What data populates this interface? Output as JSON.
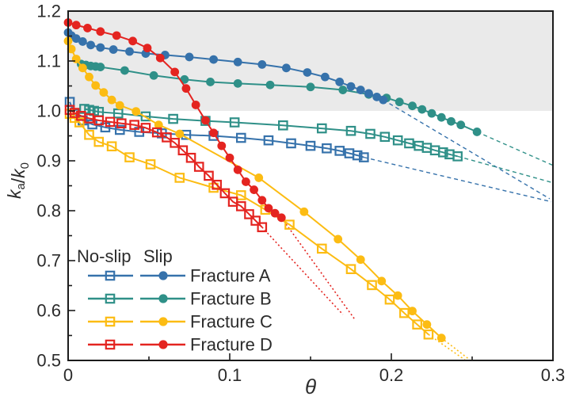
{
  "figure": {
    "background": "#ffffff",
    "frame_color": "#1c1c1c",
    "text_color": "#2b2b2b"
  },
  "chart_data": {
    "type": "line",
    "title": "",
    "xlabel": "θ",
    "ylabel": "ka/k0",
    "ylabel_parts": [
      {
        "t": "k",
        "style": "italic"
      },
      {
        "t": "a",
        "style": "sub"
      },
      {
        "t": "/",
        "style": "normal"
      },
      {
        "t": "k",
        "style": "italic"
      },
      {
        "t": "0",
        "style": "sub"
      }
    ],
    "x_range": [
      0,
      0.3
    ],
    "y_range": [
      0.5,
      1.2
    ],
    "x_ticks": {
      "values": [
        0,
        0.1,
        0.2,
        0.3
      ],
      "labels": [
        "0",
        "0.1",
        "0.2",
        "0.3"
      ],
      "minor": [
        0.05,
        0.15,
        0.25
      ]
    },
    "y_ticks": {
      "values": [
        0.5,
        0.6,
        0.7,
        0.8,
        0.9,
        1.0,
        1.1,
        1.2
      ],
      "labels": [
        "0.5",
        "0.6",
        "0.7",
        "0.8",
        "0.9",
        "1.0",
        "1.1",
        "1.2"
      ],
      "minor": [
        0.55,
        0.65,
        0.75,
        0.85,
        0.95,
        1.05,
        1.15
      ]
    },
    "grid": false,
    "shaded_band": {
      "y_from": 1.0,
      "y_to": 1.2,
      "color": "#eaeaea"
    },
    "legend_position": "inside-bottom-left",
    "series": [
      {
        "name": "Fracture A (No-slip)",
        "group": "no-slip",
        "marker": "open-square",
        "color": "#3672ab",
        "dash": "5 4",
        "dash_width": 1.4,
        "points": [
          [
            0.001,
            1.018
          ],
          [
            0.004,
            0.994
          ],
          [
            0.009,
            0.981
          ],
          [
            0.015,
            0.973
          ],
          [
            0.023,
            0.967
          ],
          [
            0.032,
            0.962
          ],
          [
            0.044,
            0.958
          ],
          [
            0.058,
            0.955
          ],
          [
            0.073,
            0.952
          ],
          [
            0.09,
            0.95
          ],
          [
            0.107,
            0.946
          ],
          [
            0.124,
            0.941
          ],
          [
            0.138,
            0.935
          ],
          [
            0.15,
            0.93
          ],
          [
            0.16,
            0.925
          ],
          [
            0.168,
            0.92
          ],
          [
            0.174,
            0.915
          ],
          [
            0.179,
            0.911
          ],
          [
            0.183,
            0.907
          ]
        ],
        "extension": [
          [
            0.183,
            0.907
          ],
          [
            0.299,
            0.818
          ]
        ]
      },
      {
        "name": "Fracture A (Slip)",
        "group": "slip",
        "marker": "filled-circle",
        "color": "#3672ab",
        "dash": "5 4",
        "dash_width": 1.4,
        "points": [
          [
            0,
            1.157
          ],
          [
            0.002,
            1.151
          ],
          [
            0.005,
            1.145
          ],
          [
            0.009,
            1.139
          ],
          [
            0.014,
            1.132
          ],
          [
            0.02,
            1.127
          ],
          [
            0.028,
            1.123
          ],
          [
            0.038,
            1.119
          ],
          [
            0.048,
            1.115
          ],
          [
            0.06,
            1.112
          ],
          [
            0.075,
            1.108
          ],
          [
            0.09,
            1.103
          ],
          [
            0.105,
            1.098
          ],
          [
            0.12,
            1.093
          ],
          [
            0.135,
            1.086
          ],
          [
            0.148,
            1.077
          ],
          [
            0.159,
            1.068
          ],
          [
            0.168,
            1.058
          ],
          [
            0.175,
            1.049
          ],
          [
            0.181,
            1.042
          ],
          [
            0.186,
            1.035
          ],
          [
            0.191,
            1.028
          ],
          [
            0.195,
            1.022
          ]
        ],
        "extension": [
          [
            0.195,
            1.022
          ],
          [
            0.298,
            0.824
          ]
        ]
      },
      {
        "name": "Fracture B (No-slip)",
        "group": "no-slip",
        "marker": "open-square",
        "color": "#2f9088",
        "dash": "5 4",
        "dash_width": 1.4,
        "points": [
          [
            0.01,
            1.004
          ],
          [
            0.013,
            1.002
          ],
          [
            0.016,
            1.0
          ],
          [
            0.019,
            0.998
          ],
          [
            0.031,
            0.995
          ],
          [
            0.048,
            0.989
          ],
          [
            0.065,
            0.984
          ],
          [
            0.085,
            0.98
          ],
          [
            0.103,
            0.977
          ],
          [
            0.133,
            0.971
          ],
          [
            0.157,
            0.965
          ],
          [
            0.175,
            0.96
          ],
          [
            0.187,
            0.954
          ],
          [
            0.196,
            0.948
          ],
          [
            0.204,
            0.941
          ],
          [
            0.211,
            0.935
          ],
          [
            0.217,
            0.93
          ],
          [
            0.222,
            0.926
          ],
          [
            0.227,
            0.921
          ],
          [
            0.232,
            0.917
          ],
          [
            0.236,
            0.913
          ],
          [
            0.241,
            0.909
          ]
        ],
        "extension": [
          [
            0.241,
            0.909
          ],
          [
            0.3,
            0.856
          ]
        ]
      },
      {
        "name": "Fracture B (Slip)",
        "group": "slip",
        "marker": "filled-circle",
        "color": "#2f9088",
        "dash": "5 4",
        "dash_width": 1.4,
        "points": [
          [
            0.008,
            1.094
          ],
          [
            0.011,
            1.092
          ],
          [
            0.014,
            1.09
          ],
          [
            0.017,
            1.089
          ],
          [
            0.02,
            1.088
          ],
          [
            0.035,
            1.081
          ],
          [
            0.053,
            1.071
          ],
          [
            0.072,
            1.063
          ],
          [
            0.088,
            1.058
          ],
          [
            0.105,
            1.055
          ],
          [
            0.125,
            1.052
          ],
          [
            0.15,
            1.048
          ],
          [
            0.17,
            1.042
          ],
          [
            0.186,
            1.033
          ],
          [
            0.197,
            1.026
          ],
          [
            0.205,
            1.018
          ],
          [
            0.213,
            1.01
          ],
          [
            0.219,
            1.003
          ],
          [
            0.225,
            0.995
          ],
          [
            0.231,
            0.987
          ],
          [
            0.237,
            0.979
          ],
          [
            0.243,
            0.972
          ],
          [
            0.253,
            0.958
          ]
        ],
        "extension": [
          [
            0.253,
            0.958
          ],
          [
            0.3,
            0.891
          ]
        ]
      },
      {
        "name": "Fracture C (No-slip)",
        "group": "no-slip",
        "marker": "open-square",
        "color": "#fcbc13",
        "dash": "2 3",
        "dash_width": 1.6,
        "points": [
          [
            0.001,
            0.994
          ],
          [
            0.004,
            0.986
          ],
          [
            0.007,
            0.977
          ],
          [
            0.013,
            0.952
          ],
          [
            0.019,
            0.938
          ],
          [
            0.027,
            0.929
          ],
          [
            0.038,
            0.907
          ],
          [
            0.051,
            0.893
          ],
          [
            0.069,
            0.866
          ],
          [
            0.09,
            0.846
          ],
          [
            0.107,
            0.831
          ],
          [
            0.122,
            0.802
          ],
          [
            0.137,
            0.772
          ],
          [
            0.157,
            0.724
          ],
          [
            0.175,
            0.683
          ],
          [
            0.188,
            0.651
          ],
          [
            0.199,
            0.622
          ],
          [
            0.208,
            0.595
          ],
          [
            0.216,
            0.572
          ],
          [
            0.223,
            0.552
          ]
        ],
        "extension": [
          [
            0.223,
            0.552
          ],
          [
            0.246,
            0.5
          ]
        ]
      },
      {
        "name": "Fracture C (Slip)",
        "group": "slip",
        "marker": "filled-circle",
        "color": "#fcbc13",
        "dash": "2 3",
        "dash_width": 1.6,
        "points": [
          [
            0,
            1.14
          ],
          [
            0.002,
            1.124
          ],
          [
            0.005,
            1.104
          ],
          [
            0.009,
            1.086
          ],
          [
            0.013,
            1.068
          ],
          [
            0.017,
            1.051
          ],
          [
            0.022,
            1.037
          ],
          [
            0.027,
            1.022
          ],
          [
            0.032,
            1.011
          ],
          [
            0.042,
            0.999
          ],
          [
            0.056,
            0.972
          ],
          [
            0.069,
            0.954
          ],
          [
            0.118,
            0.866
          ],
          [
            0.146,
            0.798
          ],
          [
            0.167,
            0.743
          ],
          [
            0.181,
            0.702
          ],
          [
            0.194,
            0.659
          ],
          [
            0.204,
            0.63
          ],
          [
            0.213,
            0.599
          ],
          [
            0.222,
            0.572
          ],
          [
            0.231,
            0.545
          ]
        ],
        "extension": [
          [
            0.231,
            0.545
          ],
          [
            0.249,
            0.5
          ]
        ]
      },
      {
        "name": "Fracture D (No-slip)",
        "group": "no-slip",
        "marker": "open-square",
        "color": "#e42420",
        "dash": "2 3",
        "dash_width": 1.6,
        "points": [
          [
            0.001,
            1.002
          ],
          [
            0.004,
            0.996
          ],
          [
            0.008,
            0.99
          ],
          [
            0.013,
            0.985
          ],
          [
            0.019,
            0.981
          ],
          [
            0.026,
            0.978
          ],
          [
            0.033,
            0.975
          ],
          [
            0.041,
            0.972
          ],
          [
            0.048,
            0.966
          ],
          [
            0.055,
            0.957
          ],
          [
            0.061,
            0.947
          ],
          [
            0.066,
            0.936
          ],
          [
            0.071,
            0.921
          ],
          [
            0.076,
            0.906
          ],
          [
            0.081,
            0.888
          ],
          [
            0.087,
            0.87
          ],
          [
            0.092,
            0.852
          ],
          [
            0.097,
            0.835
          ],
          [
            0.102,
            0.818
          ],
          [
            0.107,
            0.809
          ],
          [
            0.112,
            0.793
          ],
          [
            0.116,
            0.78
          ],
          [
            0.12,
            0.767
          ]
        ],
        "extension": [
          [
            0.12,
            0.767
          ],
          [
            0.17,
            0.592
          ]
        ]
      },
      {
        "name": "Fracture D (Slip)",
        "group": "slip",
        "marker": "filled-circle",
        "color": "#e42420",
        "dash": "2 3",
        "dash_width": 1.6,
        "points": [
          [
            0,
            1.177
          ],
          [
            0.005,
            1.172
          ],
          [
            0.012,
            1.166
          ],
          [
            0.02,
            1.159
          ],
          [
            0.03,
            1.151
          ],
          [
            0.04,
            1.14
          ],
          [
            0.049,
            1.126
          ],
          [
            0.057,
            1.106
          ],
          [
            0.066,
            1.078
          ],
          [
            0.073,
            1.045
          ],
          [
            0.079,
            1.012
          ],
          [
            0.085,
            0.981
          ],
          [
            0.09,
            0.956
          ],
          [
            0.095,
            0.93
          ],
          [
            0.1,
            0.906
          ],
          [
            0.105,
            0.882
          ],
          [
            0.11,
            0.858
          ],
          [
            0.115,
            0.842
          ],
          [
            0.12,
            0.821
          ],
          [
            0.124,
            0.805
          ],
          [
            0.128,
            0.795
          ],
          [
            0.132,
            0.786
          ]
        ],
        "extension": [
          [
            0.132,
            0.786
          ],
          [
            0.177,
            0.584
          ]
        ]
      }
    ]
  },
  "legend": {
    "columns": [
      "No-slip",
      "Slip"
    ],
    "rows": [
      {
        "label": "Fracture A",
        "color": "#3672ab"
      },
      {
        "label": "Fracture B",
        "color": "#2f9088"
      },
      {
        "label": "Fracture C",
        "color": "#fcbc13"
      },
      {
        "label": "Fracture D",
        "color": "#e42420"
      }
    ]
  }
}
